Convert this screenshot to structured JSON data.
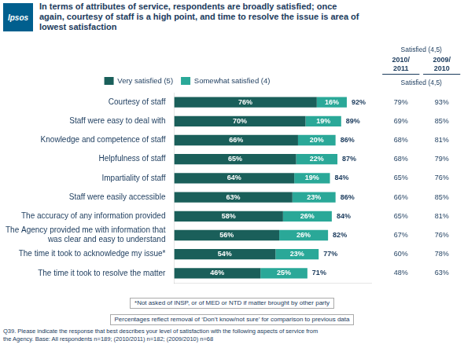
{
  "chart_data": {
    "type": "bar",
    "orientation": "horizontal",
    "stacked": true,
    "title": "In terms of attributes of service, respondents are broadly satisfied; once\nagain, courtesy of staff is a high point, and time to resolve the issue is area of\nlowest satisfaction",
    "categories": [
      "Courtesy of staff",
      "Staff were easy to deal with",
      "Knowledge and competence of staff",
      "Helpfulness of staff",
      "Impartiality of staff",
      "Staff were easily accessible",
      "The accuracy of any information provided",
      "The Agency provided me with information that\nwas clear and easy to understand",
      "The time it took to acknowledge my issue*",
      "The time it took to resolve the matter"
    ],
    "series": [
      {
        "name": "Very satisfied (5)",
        "color": "#1a5f5a",
        "values": [
          76,
          70,
          66,
          65,
          64,
          63,
          58,
          56,
          54,
          46
        ],
        "value_labels": [
          "76%",
          "70%",
          "66%",
          "65%",
          "64%",
          "63%",
          "58%",
          "56%",
          "54%",
          "46%"
        ]
      },
      {
        "name": "Somewhat satisfied (4)",
        "color": "#2aa898",
        "values": [
          16,
          19,
          20,
          22,
          19,
          23,
          26,
          26,
          23,
          25
        ],
        "value_labels": [
          "16%",
          "19%",
          "20%",
          "22%",
          "19%",
          "23%",
          "26%",
          "26%",
          "23%",
          "25%"
        ]
      }
    ],
    "totals": {
      "values": [
        92,
        89,
        86,
        87,
        84,
        86,
        84,
        82,
        77,
        71
      ],
      "value_labels": [
        "92%",
        "89%",
        "86%",
        "87%",
        "84%",
        "86%",
        "84%",
        "82%",
        "77%",
        "71%"
      ]
    },
    "columns_label": "Satisfied (4,5)",
    "columns": [
      {
        "header": [
          "2010/",
          "2011"
        ],
        "values": [
          79,
          69,
          68,
          68,
          65,
          66,
          65,
          67,
          60,
          48
        ],
        "value_labels": [
          "79%",
          "69%",
          "68%",
          "68%",
          "65%",
          "66%",
          "65%",
          "67%",
          "60%",
          "48%"
        ]
      },
      {
        "header": [
          "2009/",
          "2010"
        ],
        "values": [
          93,
          85,
          81,
          79,
          76,
          85,
          81,
          76,
          78,
          63
        ],
        "value_labels": [
          "93%",
          "85%",
          "81%",
          "79%",
          "76%",
          "85%",
          "81%",
          "76%",
          "78%",
          "63%"
        ]
      }
    ],
    "logo": "Ipsos",
    "footnotes": [
      "*Not asked of INSP, or of MED or NTD if matter brought by other party",
      "Percentages reflect removal of ‘Don’t know/not sure’ for comparison to previous data"
    ],
    "note": "Q39. Please indicate the response that best describes your level of satisfaction with the following aspects of service from\nthe Agency.  Base: All respondents  n=189; (2010/2011) n=182; (2009/2010) n=68",
    "xlim": [
      0,
      105
    ],
    "data_labels": true,
    "tick_labels": "y",
    "grid": false,
    "legend": "top"
  }
}
